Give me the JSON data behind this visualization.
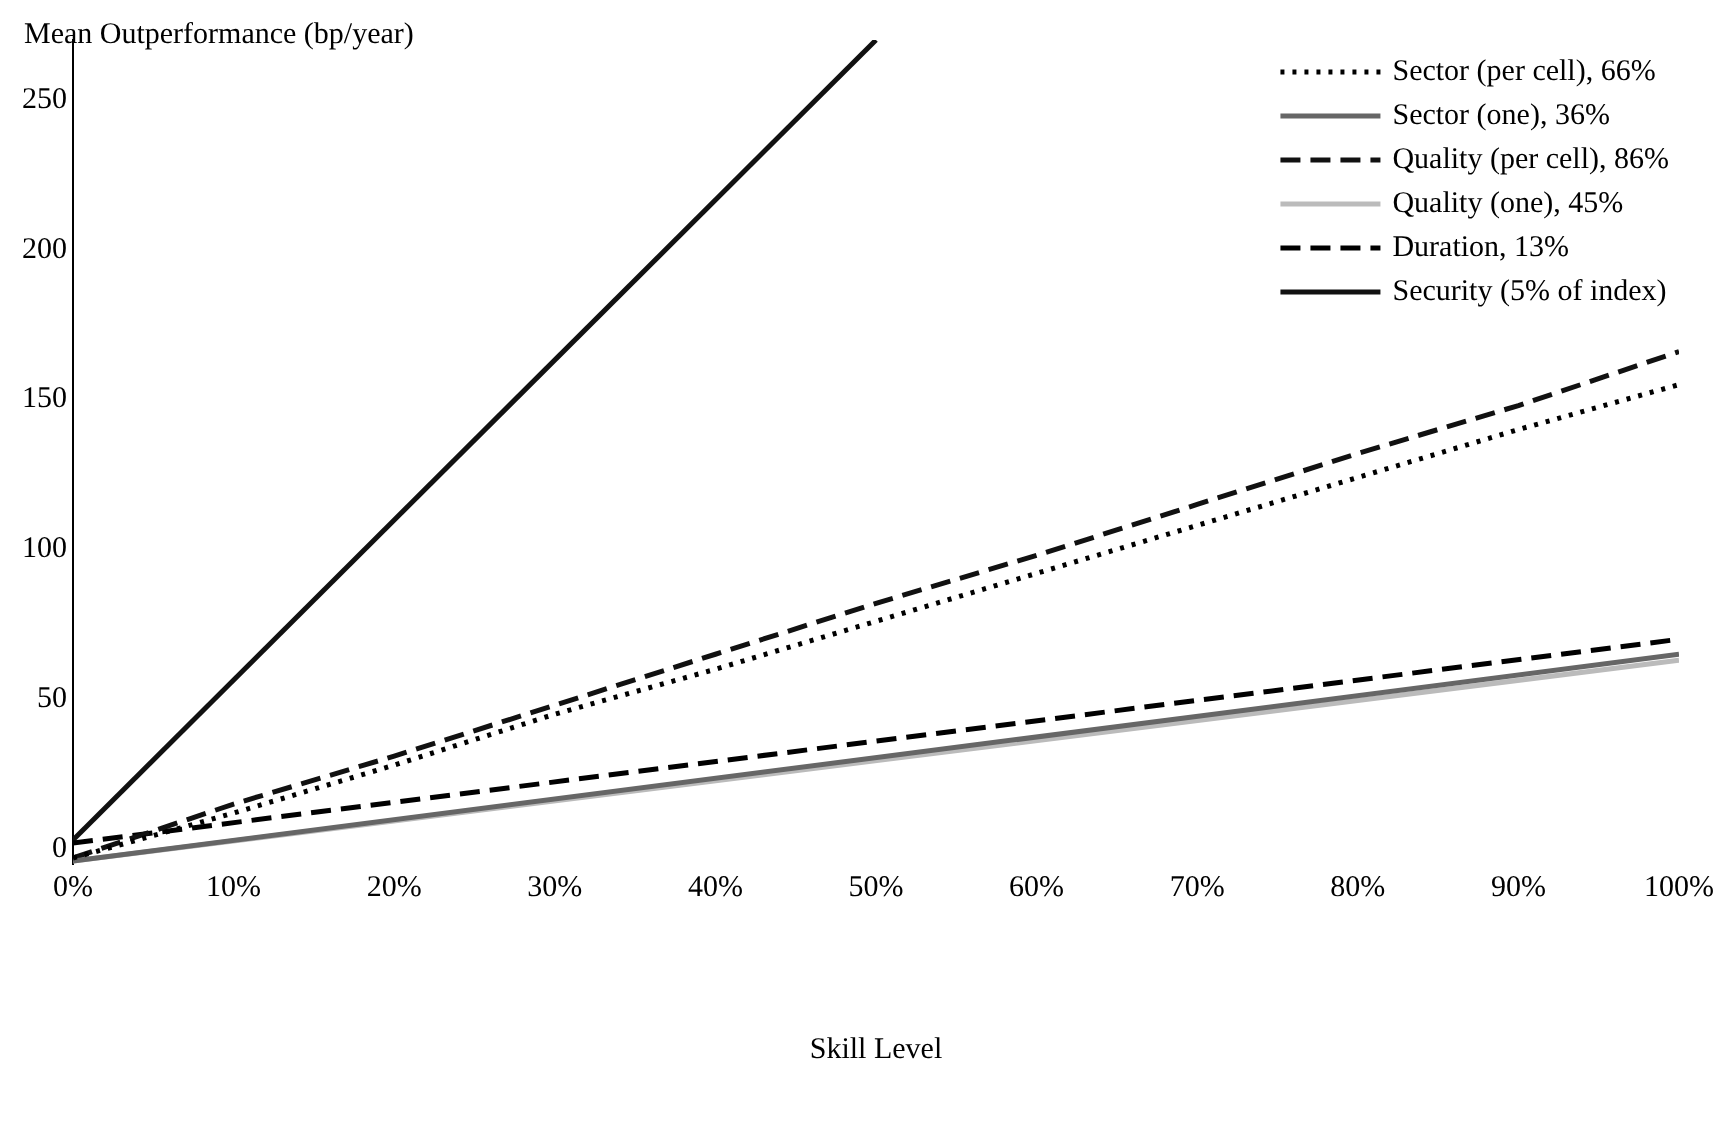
{
  "chart_data": {
    "type": "line",
    "ylabel": "Mean Outperformance (bp/year)",
    "xlabel": "Skill Level",
    "xlim": [
      0,
      1
    ],
    "xticks": [
      {
        "value": 0,
        "label": "0%"
      },
      {
        "value": 0.1,
        "label": "10%"
      },
      {
        "value": 0.2,
        "label": "20%"
      },
      {
        "value": 0.3,
        "label": "30%"
      },
      {
        "value": 0.4,
        "label": "40%"
      },
      {
        "value": 0.5,
        "label": "50%"
      },
      {
        "value": 0.6,
        "label": "60%"
      },
      {
        "value": 0.7,
        "label": "70%"
      },
      {
        "value": 0.8,
        "label": "80%"
      },
      {
        "value": 0.9,
        "label": "90%"
      },
      {
        "value": 1,
        "label": "100%"
      }
    ],
    "ylim": [
      -5,
      270
    ],
    "yticks": [
      0,
      50,
      100,
      150,
      200,
      250
    ],
    "grid": false,
    "legend": "top right",
    "marker": "none",
    "series": [
      {
        "name": "Sector (per cell), 66%",
        "color": "#000000",
        "line_style": "dotted",
        "x": [
          0,
          0.1,
          0.2,
          0.3,
          0.4,
          0.5,
          0.6,
          0.7,
          0.8,
          0.9,
          1
        ],
        "values": [
          -3,
          12,
          28,
          45,
          60,
          76,
          92,
          108,
          124,
          140,
          155
        ]
      },
      {
        "name": "Sector (one), 36%",
        "color": "#666666",
        "line_style": "solid",
        "x": [
          0,
          1
        ],
        "values": [
          -4,
          65
        ]
      },
      {
        "name": "Quality (per cell), 86%",
        "color": "#111111",
        "line_style": "dashed",
        "x": [
          0,
          0.1,
          0.2,
          0.3,
          0.4,
          0.5,
          0.6,
          0.7,
          0.8,
          0.9,
          1
        ],
        "values": [
          -3,
          15,
          31,
          48,
          65,
          82,
          98,
          115,
          132,
          148,
          166
        ]
      },
      {
        "name": "Quality (one), 45%",
        "color": "#bbbbbb",
        "line_style": "solid",
        "x": [
          0,
          1
        ],
        "values": [
          -4,
          63
        ]
      },
      {
        "name": "Duration, 13%",
        "color": "#000000",
        "line_style": "dashed",
        "x": [
          0,
          1
        ],
        "values": [
          2,
          70
        ]
      },
      {
        "name": "Security (5% of index)",
        "color": "#111111",
        "line_style": "solid",
        "x": [
          0,
          0.5
        ],
        "values": [
          3,
          270
        ]
      }
    ]
  }
}
